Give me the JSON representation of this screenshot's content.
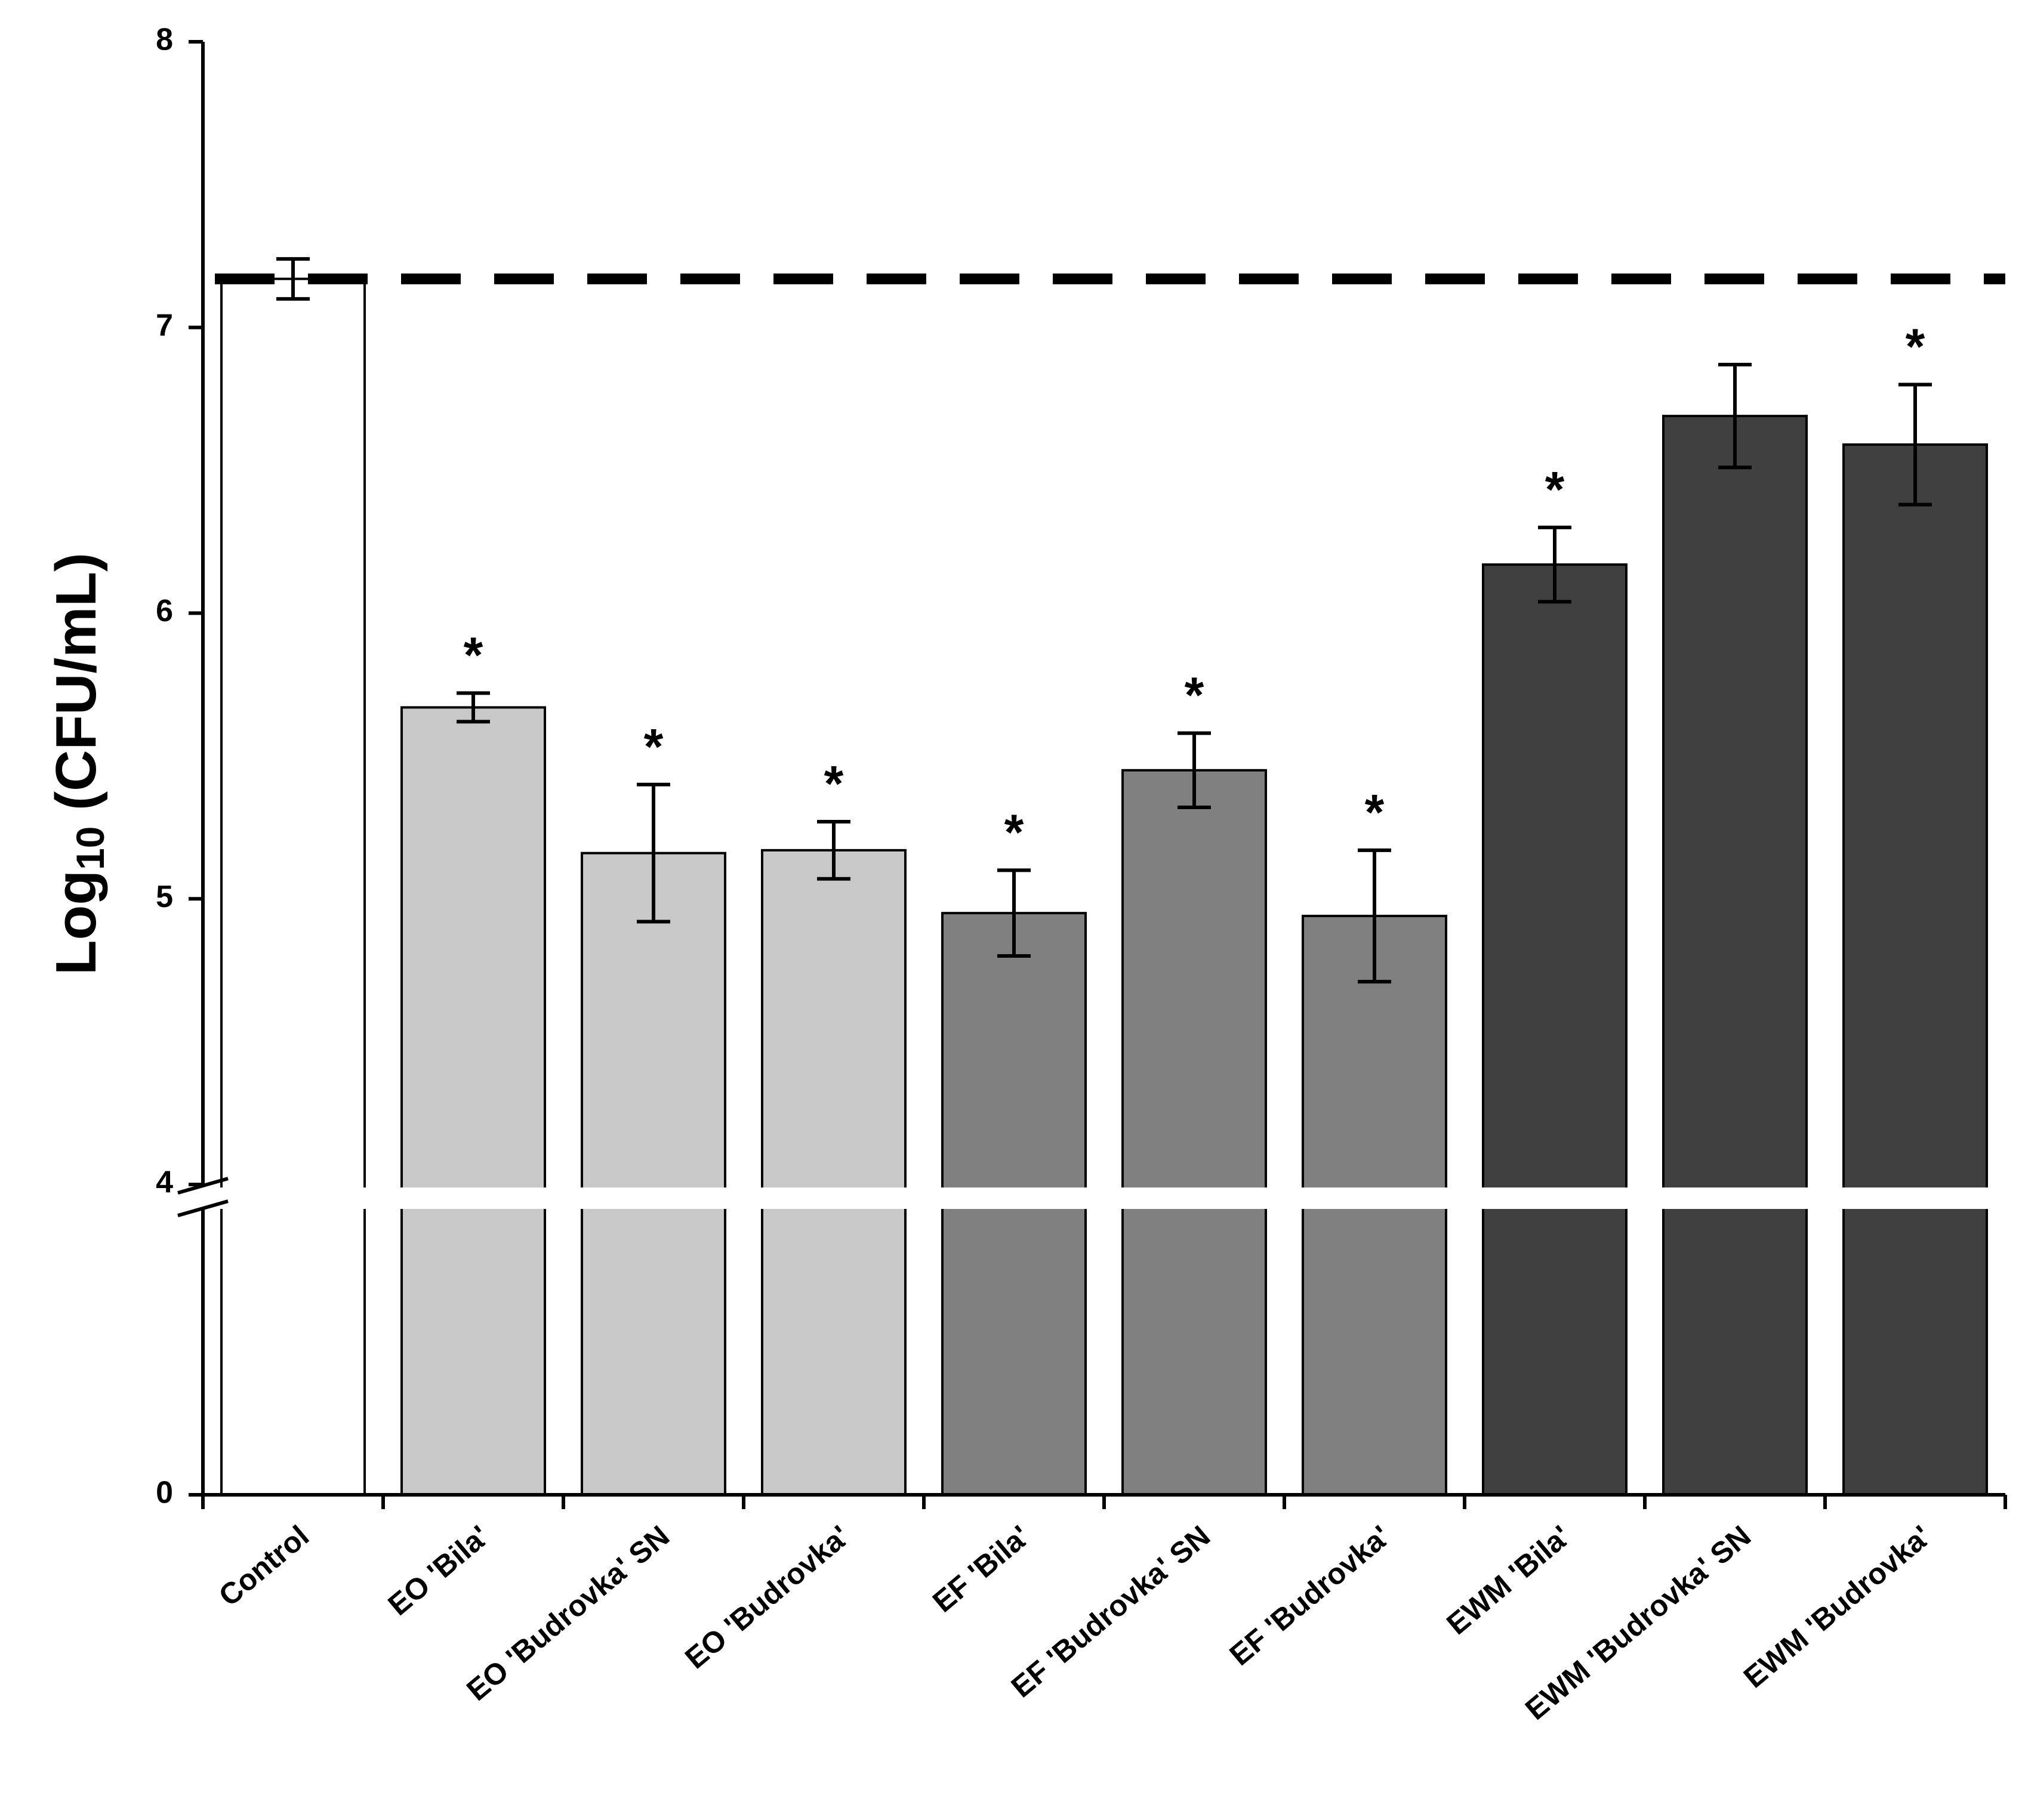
{
  "chart_data": {
    "type": "bar",
    "title": "",
    "xlabel": "",
    "ylabel": {
      "prefix": "Log",
      "subscript": "10",
      "suffix": " (CFU/mL)"
    },
    "y_axis": {
      "break": {
        "lower_segment": [
          0,
          4
        ],
        "upper_segment": [
          4,
          8
        ]
      },
      "ticks": [
        0,
        4,
        5,
        6,
        7,
        8
      ],
      "tick_labels": [
        "0",
        "4",
        "5",
        "6",
        "7",
        "8"
      ]
    },
    "reference_line": {
      "value": 7.17,
      "style": "dashed"
    },
    "categories": [
      "Control",
      "EO 'Bila'",
      "EO 'Budrovka' SN",
      "EO 'Budrovka'",
      "EF 'Bila'",
      "EF 'Budrovka' SN",
      "EF 'Budrovka'",
      "EWM 'Bila'",
      "EWM 'Budrovka' SN",
      "EWM 'Budrovka'"
    ],
    "values": [
      7.17,
      5.67,
      5.16,
      5.17,
      4.95,
      5.45,
      4.94,
      6.17,
      6.69,
      6.59
    ],
    "errors": [
      0.07,
      0.05,
      0.24,
      0.1,
      0.15,
      0.13,
      0.23,
      0.13,
      0.18,
      0.21
    ],
    "significant": [
      false,
      true,
      true,
      true,
      true,
      true,
      true,
      true,
      false,
      true
    ],
    "significance_marker": "*",
    "colors": [
      "#ffffff",
      "#c8c8c8",
      "#c8c8c8",
      "#c8c8c8",
      "#808080",
      "#808080",
      "#808080",
      "#404040",
      "#404040",
      "#404040"
    ],
    "edge_color": "#000000",
    "background_color": "#ffffff"
  }
}
